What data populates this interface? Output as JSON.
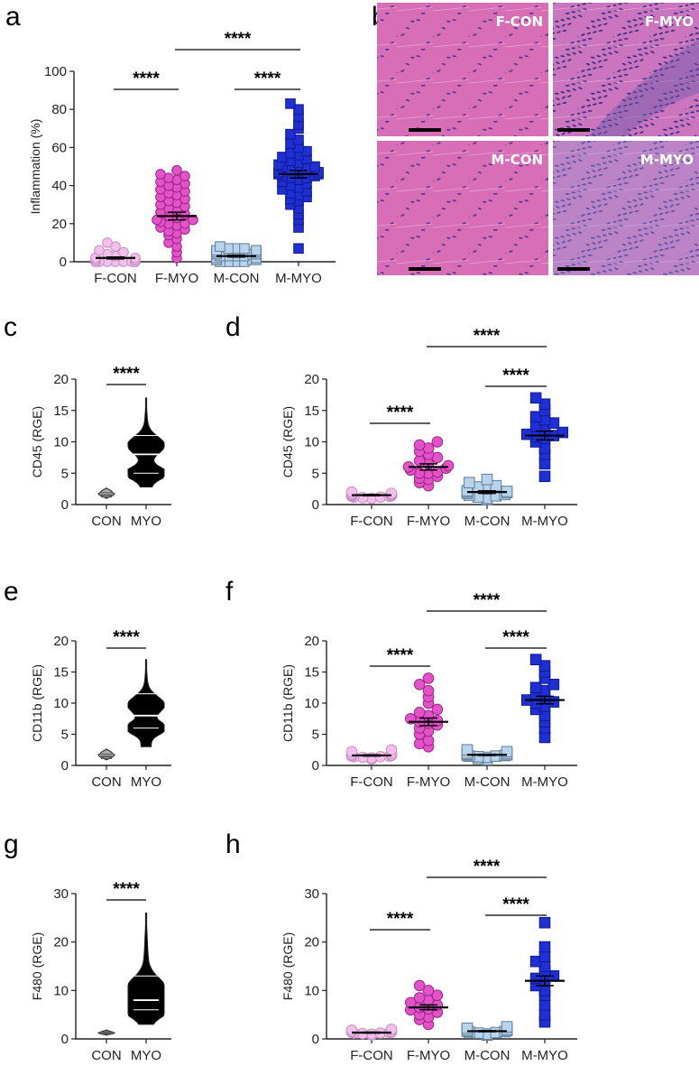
{
  "panel_letters": [
    "a",
    "b",
    "c",
    "d",
    "e",
    "f",
    "g",
    "h"
  ],
  "histology": {
    "labels": [
      "F-CON",
      "F-MYO",
      "M-CON",
      "M-MYO"
    ]
  },
  "colors": {
    "f_con_fill": "#f2c0ea",
    "f_con_stroke": "#c98fc2",
    "f_myo_fill": "#e352c9",
    "f_myo_stroke": "#9c2588",
    "m_con_fill": "#b8d3ec",
    "m_con_stroke": "#5f7d99",
    "m_myo_fill": "#1f2fd6",
    "m_myo_stroke": "#101a8c",
    "violin_con": "#aaaaaa",
    "violin_myo": "#000000",
    "tissue_con": "#d86fb6",
    "tissue_myo": "#cc75bf"
  },
  "chart_data": [
    {
      "id": "a",
      "type": "scatter",
      "categories": [
        "F-CON",
        "F-MYO",
        "M-CON",
        "M-MYO"
      ],
      "ylabel": "Inflammation  (%)",
      "ylim": [
        0,
        100
      ],
      "yticks": [
        0,
        20,
        40,
        60,
        80,
        100
      ],
      "means": [
        2,
        24,
        3,
        46
      ],
      "sems": [
        0.5,
        2,
        0.5,
        2
      ],
      "series": [
        {
          "values": [
            0,
            0,
            0,
            1,
            0,
            2,
            0,
            1,
            3,
            0,
            0,
            5,
            0,
            0,
            1,
            0,
            2,
            0,
            8,
            10,
            6,
            0,
            0,
            1,
            4,
            0,
            0,
            2,
            0,
            0
          ]
        },
        {
          "values": [
            2,
            5,
            8,
            10,
            12,
            14,
            15,
            16,
            17,
            18,
            19,
            20,
            20,
            21,
            22,
            22,
            23,
            24,
            25,
            26,
            27,
            28,
            29,
            30,
            31,
            32,
            33,
            34,
            35,
            36,
            37,
            38,
            39,
            40,
            41,
            42,
            43,
            44,
            45,
            46,
            48
          ]
        },
        {
          "values": [
            0,
            0,
            1,
            1,
            2,
            2,
            3,
            3,
            4,
            4,
            5,
            5,
            6,
            6,
            7,
            7,
            8,
            0,
            1,
            2,
            3,
            4,
            5,
            6,
            7,
            2,
            3,
            1,
            0,
            4,
            5,
            2
          ]
        },
        {
          "values": [
            7,
            18,
            22,
            25,
            28,
            30,
            32,
            33,
            34,
            35,
            36,
            37,
            38,
            39,
            40,
            41,
            42,
            43,
            44,
            44,
            45,
            45,
            46,
            46,
            47,
            47,
            48,
            48,
            49,
            50,
            50,
            51,
            52,
            53,
            54,
            55,
            56,
            57,
            58,
            60,
            62,
            64,
            67,
            70,
            72,
            76,
            80,
            83
          ]
        }
      ],
      "annotations": [
        {
          "text": "****",
          "from": 0,
          "to": 1
        },
        {
          "text": "****",
          "from": 2,
          "to": 3
        },
        {
          "text": "****",
          "from": 1,
          "to": 3
        }
      ]
    },
    {
      "id": "c",
      "type": "violin",
      "categories": [
        "CON",
        "MYO"
      ],
      "ylabel": "CD45 (RGE)",
      "ylim": [
        0,
        20
      ],
      "yticks": [
        0,
        5,
        10,
        15,
        20
      ],
      "series": [
        {
          "min": 1,
          "max": 2.6,
          "median": 1.5,
          "q1": 1.2,
          "q3": 1.9
        },
        {
          "min": 2.8,
          "max": 17,
          "median": 8,
          "q1": 5,
          "q3": 11
        }
      ],
      "annotations": [
        {
          "text": "****",
          "from": 0,
          "to": 1
        }
      ]
    },
    {
      "id": "d",
      "type": "scatter",
      "categories": [
        "F-CON",
        "F-MYO",
        "M-CON",
        "M-MYO"
      ],
      "ylabel": "CD45 (RGE)",
      "ylim": [
        0,
        20
      ],
      "yticks": [
        0,
        5,
        10,
        15,
        20
      ],
      "means": [
        1.5,
        6,
        2,
        11
      ],
      "sems": [
        0.1,
        0.5,
        0.2,
        0.7
      ],
      "series": [
        {
          "values": [
            1.0,
            1.1,
            1.2,
            1.3,
            1.4,
            1.5,
            1.5,
            1.6,
            1.7,
            1.8,
            2.0,
            1.3,
            1.4,
            1.2,
            1.6,
            1.5
          ]
        },
        {
          "values": [
            3.0,
            3.5,
            4.0,
            4.5,
            5.0,
            5.2,
            5.5,
            5.8,
            6.0,
            6.2,
            6.5,
            7.0,
            7.5,
            8.0,
            8.5,
            9.0,
            9.5,
            10.0,
            5.0,
            4.2
          ]
        },
        {
          "values": [
            0.8,
            1.0,
            1.2,
            1.5,
            1.6,
            1.8,
            2.0,
            2.2,
            2.5,
            2.8,
            3.0,
            3.5,
            4.0,
            1.4,
            1.9,
            2.1
          ]
        },
        {
          "values": [
            4.5,
            6.5,
            8.0,
            9.0,
            10.0,
            10.5,
            11.0,
            11.2,
            11.5,
            12.0,
            12.5,
            13.0,
            13.5,
            14.0,
            15.0,
            16.0,
            17.0,
            10.8
          ]
        }
      ],
      "annotations": [
        {
          "text": "****",
          "from": 0,
          "to": 1
        },
        {
          "text": "****",
          "from": 2,
          "to": 3
        },
        {
          "text": "****",
          "from": 1,
          "to": 3
        }
      ]
    },
    {
      "id": "e",
      "type": "violin",
      "categories": [
        "CON",
        "MYO"
      ],
      "ylabel": "CD11b (RGE)",
      "ylim": [
        0,
        20
      ],
      "yticks": [
        0,
        5,
        10,
        15,
        20
      ],
      "series": [
        {
          "min": 0.9,
          "max": 2.6,
          "median": 1.4,
          "q1": 1.1,
          "q3": 1.8
        },
        {
          "min": 3,
          "max": 17,
          "median": 8,
          "q1": 6,
          "q3": 11.5
        }
      ],
      "annotations": [
        {
          "text": "****",
          "from": 0,
          "to": 1
        }
      ]
    },
    {
      "id": "f",
      "type": "scatter",
      "categories": [
        "F-CON",
        "F-MYO",
        "M-CON",
        "M-MYO"
      ],
      "ylabel": "CD11b (RGE)",
      "ylim": [
        0,
        20
      ],
      "yticks": [
        0,
        5,
        10,
        15,
        20
      ],
      "means": [
        1.6,
        7,
        1.7,
        10.5
      ],
      "sems": [
        0.1,
        0.6,
        0.1,
        0.6
      ],
      "series": [
        {
          "values": [
            1.0,
            1.2,
            1.3,
            1.4,
            1.5,
            1.6,
            1.7,
            1.8,
            2.0,
            2.2,
            2.5,
            1.5,
            1.4,
            1.6
          ]
        },
        {
          "values": [
            3.0,
            3.5,
            4.0,
            5.0,
            5.5,
            6.0,
            6.5,
            7.0,
            7.5,
            8.0,
            8.5,
            9.0,
            10.0,
            11.0,
            12.0,
            13.0,
            14.0,
            6.8,
            7.2
          ]
        },
        {
          "values": [
            0.9,
            1.1,
            1.3,
            1.5,
            1.6,
            1.7,
            1.8,
            2.0,
            2.2,
            2.5,
            1.4,
            1.9,
            1.6,
            1.5
          ]
        },
        {
          "values": [
            4.5,
            6.0,
            7.0,
            8.0,
            9.0,
            9.5,
            10.0,
            10.5,
            11.0,
            11.5,
            12.0,
            12.5,
            13.0,
            14.0,
            15.0,
            16.0,
            17.0,
            10.2
          ]
        }
      ],
      "annotations": [
        {
          "text": "****",
          "from": 0,
          "to": 1
        },
        {
          "text": "****",
          "from": 2,
          "to": 3
        },
        {
          "text": "****",
          "from": 1,
          "to": 3
        }
      ]
    },
    {
      "id": "g",
      "type": "violin",
      "categories": [
        "CON",
        "MYO"
      ],
      "ylabel": "F480 (RGE)",
      "ylim": [
        0,
        30
      ],
      "yticks": [
        0,
        10,
        20,
        30
      ],
      "series": [
        {
          "min": 0.8,
          "max": 1.8,
          "median": 1.2,
          "q1": 1.0,
          "q3": 1.5
        },
        {
          "min": 3,
          "max": 26,
          "median": 8,
          "q1": 6,
          "q3": 13
        }
      ],
      "annotations": [
        {
          "text": "****",
          "from": 0,
          "to": 1
        }
      ]
    },
    {
      "id": "h",
      "type": "scatter",
      "categories": [
        "F-CON",
        "F-MYO",
        "M-CON",
        "M-MYO"
      ],
      "ylabel": "F480 (RGE)",
      "ylim": [
        0,
        30
      ],
      "yticks": [
        0,
        10,
        20,
        30
      ],
      "means": [
        1.3,
        6.5,
        1.6,
        12
      ],
      "sems": [
        0.1,
        0.5,
        0.1,
        1
      ],
      "series": [
        {
          "values": [
            0.8,
            1.0,
            1.1,
            1.2,
            1.3,
            1.4,
            1.5,
            1.6,
            1.8,
            2.0,
            1.2,
            1.4
          ]
        },
        {
          "values": [
            3.0,
            4.0,
            4.5,
            5.0,
            5.5,
            6.0,
            6.5,
            7.0,
            7.5,
            8.0,
            8.5,
            9.0,
            10.0,
            11.0,
            6.2
          ]
        },
        {
          "values": [
            0.8,
            1.0,
            1.2,
            1.4,
            1.5,
            1.6,
            1.8,
            2.0,
            2.2,
            2.5,
            1.3,
            1.7
          ]
        },
        {
          "values": [
            3.5,
            5.0,
            7.0,
            9.0,
            10.0,
            11.0,
            12.0,
            13.0,
            14.0,
            15.0,
            16.0,
            17.0,
            19.0,
            24.0,
            12.5
          ]
        }
      ],
      "annotations": [
        {
          "text": "****",
          "from": 0,
          "to": 1
        },
        {
          "text": "****",
          "from": 2,
          "to": 3
        },
        {
          "text": "****",
          "from": 1,
          "to": 3
        }
      ]
    }
  ]
}
